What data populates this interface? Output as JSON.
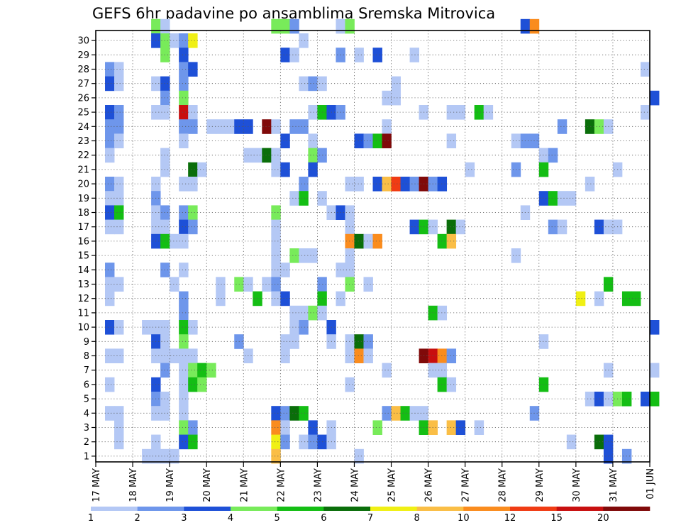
{
  "chart_data": {
    "type": "heatmap",
    "title": "GEFS 6hr padavine po ansamblima Sremska Mitrovica",
    "xlabel": "",
    "ylabel": "",
    "x_ticks": [
      "17 MAY",
      "18 MAY",
      "19 MAY",
      "20 MAY",
      "21 MAY",
      "22 MAY",
      "23 MAY",
      "24 MAY",
      "25 MAY",
      "26 MAY",
      "27 MAY",
      "28 MAY",
      "29 MAY",
      "30 MAY",
      "31 MAY",
      "01 JUN"
    ],
    "y_ticks": [
      1,
      2,
      3,
      4,
      5,
      6,
      7,
      8,
      9,
      10,
      11,
      12,
      13,
      14,
      15,
      16,
      17,
      18,
      19,
      20,
      21,
      22,
      23,
      24,
      25,
      26,
      27,
      28,
      29,
      30
    ],
    "time_steps_per_day": 4,
    "legend": {
      "levels": [
        "1",
        "2",
        "3",
        "4",
        "5",
        "6",
        "7",
        "8",
        "10",
        "12",
        "15",
        "20"
      ],
      "colors": [
        "#b4c8f5",
        "#6e96eb",
        "#1e50d7",
        "#78eb5a",
        "#14be14",
        "#0a6e0a",
        "#f0f014",
        "#fabe46",
        "#fa8c1e",
        "#f03c14",
        "#c80f0f",
        "#800a0a"
      ]
    },
    "cells": [
      [
        30,
        6,
        4
      ],
      [
        30,
        7,
        1
      ],
      [
        30,
        19,
        4
      ],
      [
        30,
        20,
        4
      ],
      [
        30,
        21,
        2
      ],
      [
        30,
        26,
        1
      ],
      [
        30,
        27,
        4
      ],
      [
        30,
        46,
        3
      ],
      [
        30,
        47,
        9
      ],
      [
        29,
        6,
        3
      ],
      [
        29,
        7,
        4
      ],
      [
        29,
        8,
        1
      ],
      [
        29,
        9,
        2
      ],
      [
        29,
        10,
        7
      ],
      [
        29,
        22,
        1
      ],
      [
        28,
        7,
        4
      ],
      [
        28,
        9,
        3
      ],
      [
        28,
        20,
        3
      ],
      [
        28,
        21,
        1
      ],
      [
        28,
        26,
        2
      ],
      [
        28,
        28,
        1
      ],
      [
        28,
        30,
        3
      ],
      [
        28,
        34,
        1
      ],
      [
        27,
        1,
        2
      ],
      [
        27,
        2,
        1
      ],
      [
        27,
        9,
        2
      ],
      [
        27,
        10,
        3
      ],
      [
        27,
        59,
        1
      ],
      [
        26,
        1,
        3
      ],
      [
        26,
        2,
        1
      ],
      [
        26,
        6,
        1
      ],
      [
        26,
        7,
        3
      ],
      [
        26,
        9,
        2
      ],
      [
        26,
        22,
        1
      ],
      [
        26,
        23,
        2
      ],
      [
        26,
        24,
        1
      ],
      [
        26,
        32,
        1
      ],
      [
        25,
        7,
        2
      ],
      [
        25,
        9,
        4
      ],
      [
        25,
        31,
        1
      ],
      [
        25,
        32,
        1
      ],
      [
        25,
        60,
        3
      ],
      [
        24,
        1,
        3
      ],
      [
        24,
        2,
        2
      ],
      [
        24,
        6,
        1
      ],
      [
        24,
        7,
        1
      ],
      [
        24,
        9,
        11
      ],
      [
        24,
        10,
        1
      ],
      [
        24,
        23,
        1
      ],
      [
        24,
        24,
        5
      ],
      [
        24,
        25,
        3
      ],
      [
        24,
        26,
        2
      ],
      [
        24,
        35,
        1
      ],
      [
        24,
        38,
        1
      ],
      [
        24,
        39,
        1
      ],
      [
        24,
        41,
        5
      ],
      [
        24,
        42,
        1
      ],
      [
        24,
        59,
        1
      ],
      [
        23,
        1,
        2
      ],
      [
        23,
        2,
        2
      ],
      [
        23,
        9,
        2
      ],
      [
        23,
        10,
        2
      ],
      [
        23,
        12,
        1
      ],
      [
        23,
        13,
        1
      ],
      [
        23,
        14,
        1
      ],
      [
        23,
        15,
        3
      ],
      [
        23,
        16,
        3
      ],
      [
        23,
        18,
        12
      ],
      [
        23,
        19,
        1
      ],
      [
        23,
        21,
        2
      ],
      [
        23,
        22,
        2
      ],
      [
        23,
        31,
        1
      ],
      [
        23,
        50,
        2
      ],
      [
        23,
        53,
        6
      ],
      [
        23,
        54,
        4
      ],
      [
        23,
        55,
        1
      ],
      [
        22,
        1,
        2
      ],
      [
        22,
        2,
        1
      ],
      [
        22,
        9,
        1
      ],
      [
        22,
        20,
        3
      ],
      [
        22,
        23,
        1
      ],
      [
        22,
        28,
        3
      ],
      [
        22,
        29,
        2
      ],
      [
        22,
        30,
        5
      ],
      [
        22,
        31,
        12
      ],
      [
        22,
        38,
        1
      ],
      [
        22,
        45,
        1
      ],
      [
        22,
        46,
        2
      ],
      [
        22,
        47,
        2
      ],
      [
        21,
        1,
        1
      ],
      [
        21,
        7,
        1
      ],
      [
        21,
        16,
        1
      ],
      [
        21,
        17,
        1
      ],
      [
        21,
        18,
        6
      ],
      [
        21,
        19,
        1
      ],
      [
        21,
        23,
        4
      ],
      [
        21,
        24,
        2
      ],
      [
        21,
        48,
        1
      ],
      [
        21,
        49,
        2
      ],
      [
        20,
        7,
        1
      ],
      [
        20,
        10,
        6
      ],
      [
        20,
        11,
        1
      ],
      [
        20,
        19,
        1
      ],
      [
        20,
        20,
        3
      ],
      [
        20,
        23,
        3
      ],
      [
        20,
        40,
        1
      ],
      [
        20,
        45,
        2
      ],
      [
        20,
        48,
        5
      ],
      [
        20,
        56,
        1
      ],
      [
        19,
        1,
        2
      ],
      [
        19,
        2,
        1
      ],
      [
        19,
        6,
        1
      ],
      [
        19,
        9,
        1
      ],
      [
        19,
        10,
        1
      ],
      [
        19,
        22,
        2
      ],
      [
        19,
        27,
        1
      ],
      [
        19,
        28,
        1
      ],
      [
        19,
        30,
        3
      ],
      [
        19,
        31,
        8
      ],
      [
        19,
        32,
        10
      ],
      [
        19,
        33,
        3
      ],
      [
        19,
        34,
        2
      ],
      [
        19,
        35,
        12
      ],
      [
        19,
        36,
        2
      ],
      [
        19,
        37,
        3
      ],
      [
        19,
        53,
        1
      ],
      [
        18,
        1,
        1
      ],
      [
        18,
        2,
        1
      ],
      [
        18,
        6,
        2
      ],
      [
        18,
        21,
        1
      ],
      [
        18,
        22,
        5
      ],
      [
        18,
        24,
        1
      ],
      [
        18,
        48,
        3
      ],
      [
        18,
        49,
        5
      ],
      [
        18,
        50,
        1
      ],
      [
        18,
        51,
        1
      ],
      [
        17,
        1,
        3
      ],
      [
        17,
        2,
        5
      ],
      [
        17,
        6,
        1
      ],
      [
        17,
        7,
        2
      ],
      [
        17,
        9,
        2
      ],
      [
        17,
        10,
        4
      ],
      [
        17,
        19,
        4
      ],
      [
        17,
        25,
        1
      ],
      [
        17,
        26,
        3
      ],
      [
        17,
        27,
        1
      ],
      [
        17,
        46,
        1
      ],
      [
        16,
        1,
        1
      ],
      [
        16,
        2,
        1
      ],
      [
        16,
        6,
        1
      ],
      [
        16,
        7,
        1
      ],
      [
        16,
        9,
        3
      ],
      [
        16,
        10,
        2
      ],
      [
        16,
        19,
        1
      ],
      [
        16,
        27,
        1
      ],
      [
        16,
        34,
        3
      ],
      [
        16,
        35,
        5
      ],
      [
        16,
        36,
        1
      ],
      [
        16,
        38,
        6
      ],
      [
        16,
        39,
        1
      ],
      [
        16,
        49,
        2
      ],
      [
        16,
        50,
        1
      ],
      [
        16,
        54,
        3
      ],
      [
        16,
        55,
        1
      ],
      [
        16,
        56,
        1
      ],
      [
        15,
        6,
        3
      ],
      [
        15,
        7,
        5
      ],
      [
        15,
        8,
        1
      ],
      [
        15,
        9,
        1
      ],
      [
        15,
        19,
        1
      ],
      [
        15,
        27,
        9
      ],
      [
        15,
        28,
        6
      ],
      [
        15,
        29,
        1
      ],
      [
        15,
        30,
        9
      ],
      [
        15,
        37,
        5
      ],
      [
        15,
        38,
        8
      ],
      [
        14,
        19,
        1
      ],
      [
        14,
        21,
        4
      ],
      [
        14,
        22,
        1
      ],
      [
        14,
        23,
        1
      ],
      [
        14,
        27,
        1
      ],
      [
        14,
        45,
        1
      ],
      [
        13,
        1,
        2
      ],
      [
        13,
        7,
        2
      ],
      [
        13,
        9,
        1
      ],
      [
        13,
        19,
        1
      ],
      [
        13,
        20,
        1
      ],
      [
        13,
        26,
        1
      ],
      [
        13,
        27,
        1
      ],
      [
        12,
        1,
        1
      ],
      [
        12,
        2,
        1
      ],
      [
        12,
        8,
        1
      ],
      [
        12,
        13,
        1
      ],
      [
        12,
        15,
        4
      ],
      [
        12,
        16,
        1
      ],
      [
        12,
        18,
        1
      ],
      [
        12,
        19,
        2
      ],
      [
        12,
        24,
        2
      ],
      [
        12,
        27,
        4
      ],
      [
        12,
        29,
        1
      ],
      [
        12,
        55,
        5
      ],
      [
        11,
        1,
        1
      ],
      [
        11,
        9,
        2
      ],
      [
        11,
        13,
        1
      ],
      [
        11,
        17,
        5
      ],
      [
        11,
        19,
        1
      ],
      [
        11,
        20,
        3
      ],
      [
        11,
        24,
        5
      ],
      [
        11,
        26,
        1
      ],
      [
        11,
        52,
        7
      ],
      [
        11,
        54,
        1
      ],
      [
        11,
        57,
        5
      ],
      [
        11,
        58,
        5
      ],
      [
        10,
        9,
        2
      ],
      [
        10,
        21,
        1
      ],
      [
        10,
        22,
        1
      ],
      [
        10,
        23,
        4
      ],
      [
        10,
        24,
        1
      ],
      [
        10,
        36,
        5
      ],
      [
        10,
        37,
        1
      ],
      [
        9,
        1,
        3
      ],
      [
        9,
        2,
        1
      ],
      [
        9,
        5,
        1
      ],
      [
        9,
        6,
        1
      ],
      [
        9,
        7,
        1
      ],
      [
        9,
        9,
        5
      ],
      [
        9,
        10,
        1
      ],
      [
        9,
        21,
        1
      ],
      [
        9,
        22,
        2
      ],
      [
        9,
        25,
        3
      ],
      [
        9,
        60,
        3
      ],
      [
        8,
        6,
        3
      ],
      [
        8,
        7,
        1
      ],
      [
        8,
        9,
        4
      ],
      [
        8,
        15,
        2
      ],
      [
        8,
        20,
        1
      ],
      [
        8,
        21,
        1
      ],
      [
        8,
        25,
        1
      ],
      [
        8,
        27,
        1
      ],
      [
        8,
        28,
        6
      ],
      [
        8,
        29,
        2
      ],
      [
        8,
        48,
        1
      ],
      [
        7,
        1,
        1
      ],
      [
        7,
        2,
        1
      ],
      [
        7,
        6,
        1
      ],
      [
        7,
        7,
        1
      ],
      [
        7,
        8,
        1
      ],
      [
        7,
        9,
        1
      ],
      [
        7,
        10,
        1
      ],
      [
        7,
        16,
        1
      ],
      [
        7,
        20,
        1
      ],
      [
        7,
        27,
        1
      ],
      [
        7,
        28,
        9
      ],
      [
        7,
        29,
        1
      ],
      [
        7,
        35,
        12
      ],
      [
        7,
        36,
        11
      ],
      [
        7,
        37,
        9
      ],
      [
        7,
        38,
        2
      ],
      [
        6,
        7,
        2
      ],
      [
        6,
        9,
        1
      ],
      [
        6,
        10,
        4
      ],
      [
        6,
        11,
        5
      ],
      [
        6,
        12,
        4
      ],
      [
        6,
        31,
        1
      ],
      [
        6,
        36,
        1
      ],
      [
        6,
        37,
        1
      ],
      [
        6,
        55,
        1
      ],
      [
        6,
        60,
        1
      ],
      [
        5,
        1,
        1
      ],
      [
        5,
        6,
        3
      ],
      [
        5,
        9,
        1
      ],
      [
        5,
        10,
        5
      ],
      [
        5,
        11,
        4
      ],
      [
        5,
        27,
        1
      ],
      [
        5,
        37,
        5
      ],
      [
        5,
        38,
        1
      ],
      [
        5,
        48,
        5
      ],
      [
        4,
        6,
        2
      ],
      [
        4,
        7,
        1
      ],
      [
        4,
        9,
        1
      ],
      [
        4,
        53,
        1
      ],
      [
        4,
        54,
        3
      ],
      [
        4,
        55,
        1
      ],
      [
        4,
        56,
        4
      ],
      [
        4,
        57,
        5
      ],
      [
        4,
        59,
        3
      ],
      [
        4,
        60,
        5
      ],
      [
        3,
        1,
        1
      ],
      [
        3,
        2,
        1
      ],
      [
        3,
        6,
        1
      ],
      [
        3,
        7,
        1
      ],
      [
        3,
        9,
        1
      ],
      [
        3,
        19,
        3
      ],
      [
        3,
        20,
        2
      ],
      [
        3,
        21,
        6
      ],
      [
        3,
        22,
        5
      ],
      [
        3,
        31,
        2
      ],
      [
        3,
        32,
        8
      ],
      [
        3,
        33,
        5
      ],
      [
        3,
        34,
        1
      ],
      [
        3,
        35,
        1
      ],
      [
        3,
        47,
        2
      ],
      [
        2,
        2,
        1
      ],
      [
        2,
        9,
        4
      ],
      [
        2,
        10,
        2
      ],
      [
        2,
        19,
        9
      ],
      [
        2,
        20,
        1
      ],
      [
        2,
        23,
        3
      ],
      [
        2,
        25,
        1
      ],
      [
        2,
        30,
        4
      ],
      [
        2,
        35,
        5
      ],
      [
        2,
        36,
        8
      ],
      [
        2,
        38,
        8
      ],
      [
        2,
        39,
        3
      ],
      [
        2,
        41,
        1
      ],
      [
        1,
        2,
        1
      ],
      [
        1,
        6,
        1
      ],
      [
        1,
        9,
        3
      ],
      [
        1,
        10,
        5
      ],
      [
        1,
        19,
        7
      ],
      [
        1,
        20,
        2
      ],
      [
        1,
        22,
        1
      ],
      [
        1,
        23,
        2
      ],
      [
        1,
        24,
        3
      ],
      [
        1,
        25,
        1
      ],
      [
        1,
        51,
        1
      ],
      [
        1,
        54,
        6
      ],
      [
        1,
        55,
        3
      ],
      [
        0,
        5,
        1
      ],
      [
        0,
        6,
        1
      ],
      [
        0,
        7,
        1
      ],
      [
        0,
        8,
        1
      ],
      [
        0,
        19,
        8
      ],
      [
        0,
        28,
        1
      ],
      [
        0,
        55,
        3
      ],
      [
        0,
        57,
        2
      ]
    ]
  }
}
